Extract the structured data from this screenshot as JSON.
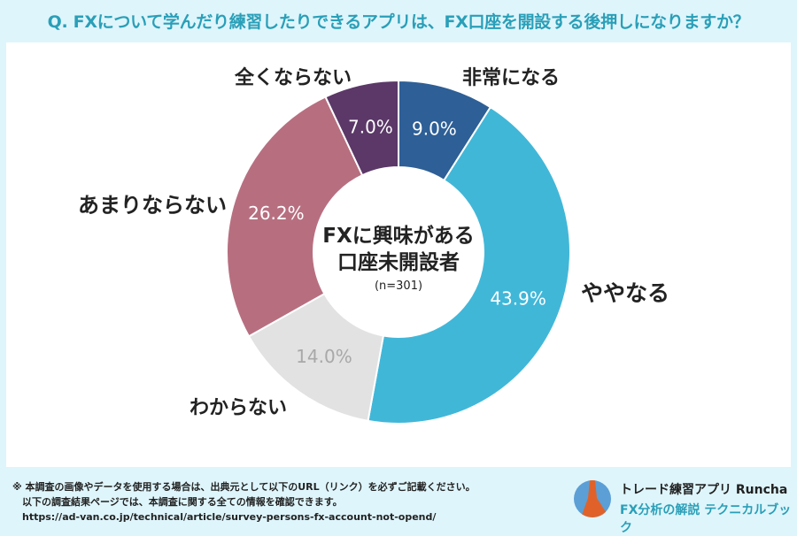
{
  "title": "Q. FXについて学んだり練習したりできるアプリは、FX口座を開設する後押しになりますか？",
  "chart_data": {
    "type": "pie",
    "donut": true,
    "center_label": [
      "FXに興味がある",
      "口座未開設者"
    ],
    "center_note": "(n=301)",
    "categories": [
      "非常になる",
      "ややなる",
      "わからない",
      "あまりならない",
      "全くならない"
    ],
    "values": [
      9.0,
      43.9,
      14.0,
      26.2,
      7.0
    ],
    "value_labels": [
      "9.0%",
      "43.9%",
      "14.0%",
      "26.2%",
      "7.0%"
    ],
    "colors": [
      "#2e5f96",
      "#41b7d8",
      "#e2e2e2",
      "#b76f80",
      "#5b3868"
    ],
    "label_colors": [
      "#ffffff",
      "#ffffff",
      "#a8a8a8",
      "#ffffff",
      "#ffffff"
    ]
  },
  "footer": {
    "note_lines": [
      "※ 本調査の画像やデータを使用する場合は、出典元として以下のURL（リンク）を必ずご記載ください。",
      "　以下の調査結果ページでは、本調査に関する全ての情報を確認できます。",
      "　https://ad-van.co.jp/technical/article/survey-persons-fx-account-not-opend/"
    ],
    "brand_line1": "トレード練習アプリ Runcha",
    "brand_line2": "FX分析の解説 テクニカルブック"
  }
}
